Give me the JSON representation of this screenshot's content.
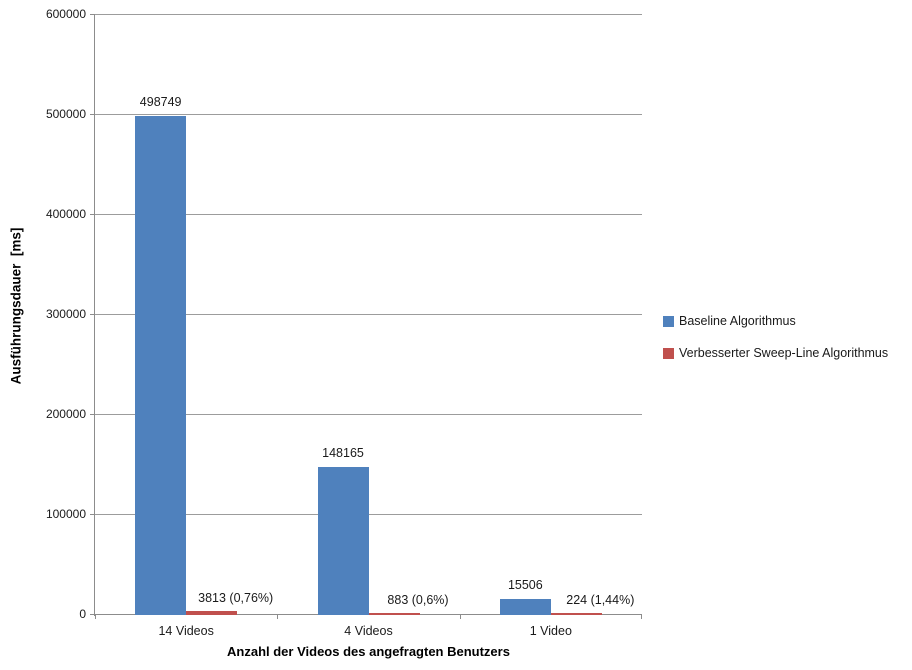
{
  "chart_data": {
    "type": "bar",
    "title": "",
    "categories": [
      "14 Videos",
      "4 Videos",
      "1 Video"
    ],
    "series": [
      {
        "name": "Baseline Algorithmus",
        "color": "#4F81BD",
        "values": [
          498749,
          148165,
          15506
        ],
        "data_labels": [
          "498749",
          "148165",
          "15506"
        ]
      },
      {
        "name": "Verbesserter Sweep-Line Algorithmus",
        "color": "#C0504D",
        "values": [
          3813,
          883,
          224
        ],
        "data_labels": [
          "3813 (0,76%)",
          "883 (0,6%)",
          "224 (1,44%)"
        ]
      }
    ],
    "xlabel": "Anzahl der Videos des angefragten Benutzers",
    "ylabel": "Ausführungsdauer  [ms]",
    "ylim": [
      0,
      600000
    ],
    "ytick_step": 100000,
    "ytick_labels": [
      "0",
      "100000",
      "200000",
      "300000",
      "400000",
      "500000",
      "600000"
    ],
    "grid": true,
    "legend_position": "right"
  },
  "colors": {
    "gridline": "#9C9C9C",
    "axis": "#8C8C8C",
    "background": "#FFFFFF",
    "series_blue": "#4F81BD",
    "series_red": "#C0504D"
  }
}
